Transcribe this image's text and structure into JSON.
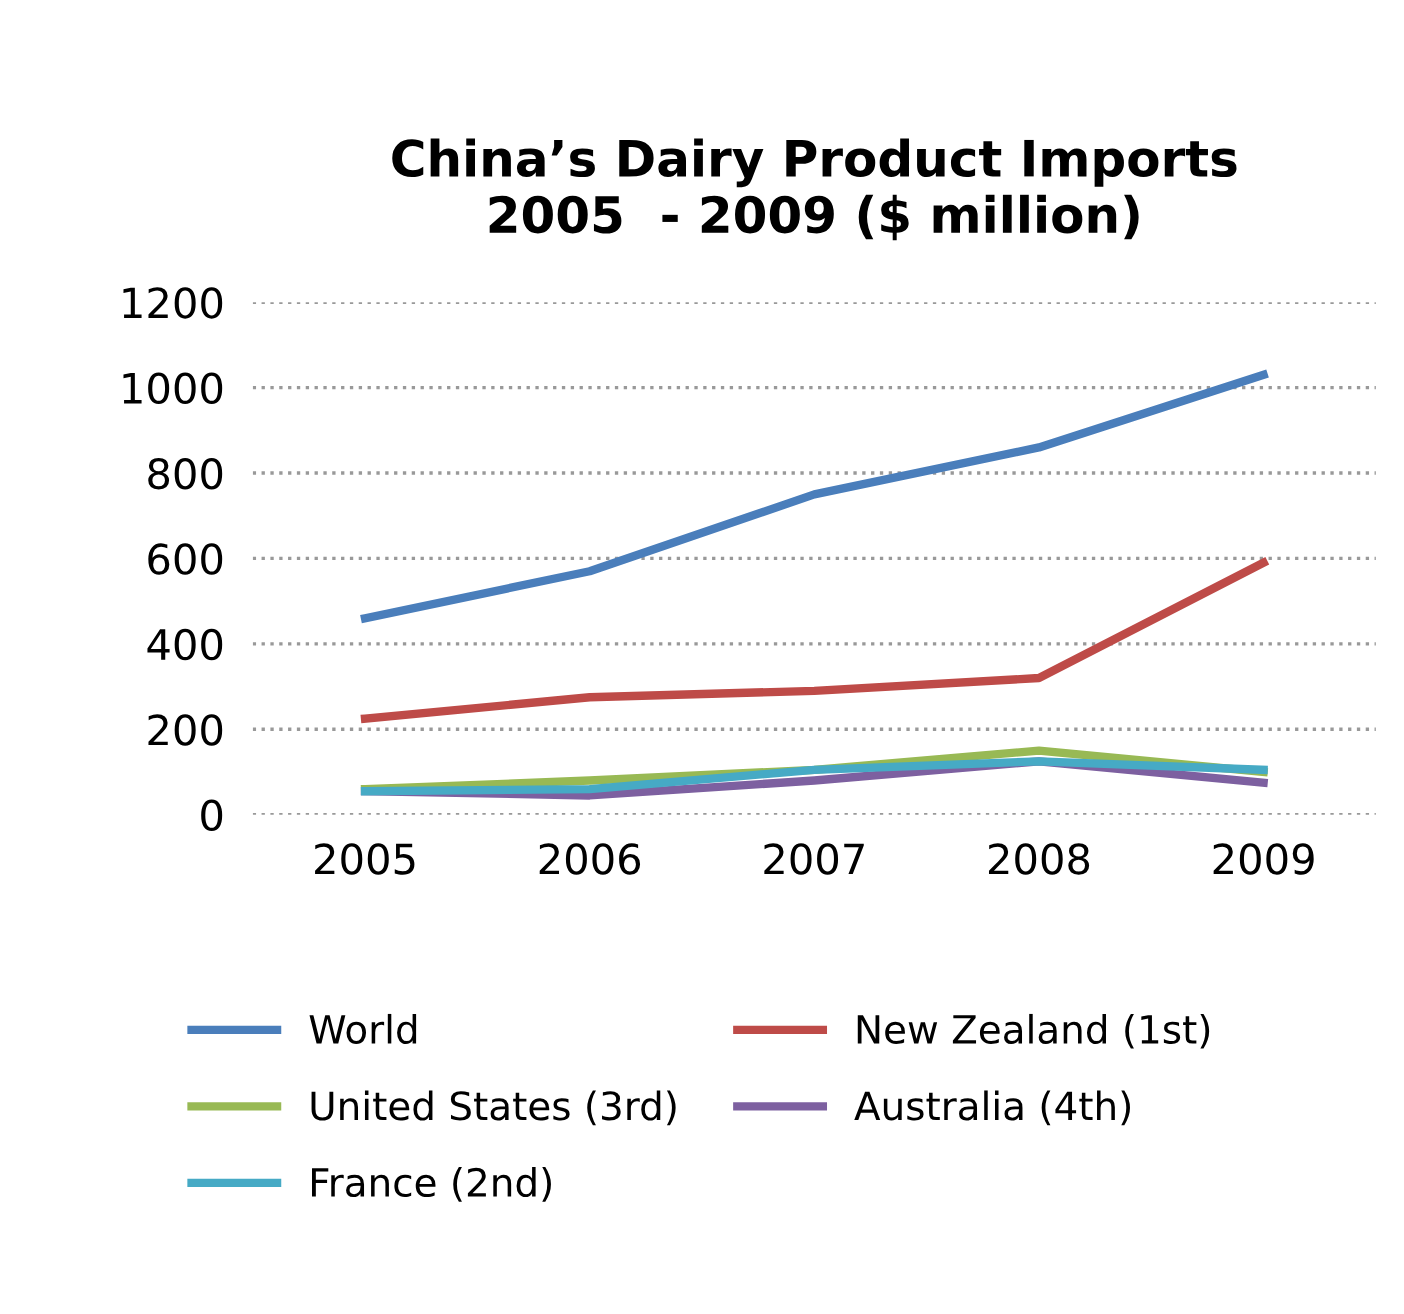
{
  "chart_data": {
    "type": "line",
    "title": "China’s Dairy Product Imports\n2005  - 2009 ($ million)",
    "categories": [
      "2005",
      "2006",
      "2007",
      "2008",
      "2009"
    ],
    "series": [
      {
        "name": "World",
        "color": "#4a7ebb",
        "values": [
          460,
          570,
          750,
          860,
          1030
        ]
      },
      {
        "name": "New Zealand (1st)",
        "color": "#be4b48",
        "values": [
          225,
          275,
          290,
          320,
          590
        ]
      },
      {
        "name": "United States (3rd)",
        "color": "#98b954",
        "values": [
          60,
          80,
          105,
          150,
          100
        ]
      },
      {
        "name": "Australia (4th)",
        "color": "#7d60a0",
        "values": [
          55,
          45,
          80,
          125,
          75
        ]
      },
      {
        "name": "France (2nd)",
        "color": "#46aac5",
        "values": [
          55,
          60,
          105,
          125,
          105
        ]
      }
    ],
    "ylim": [
      0,
      1200
    ],
    "yticks": [
      0,
      200,
      400,
      600,
      800,
      1000,
      1200
    ],
    "grid": "y",
    "legend": "bottom",
    "marker": "none",
    "line_style": "solid"
  }
}
